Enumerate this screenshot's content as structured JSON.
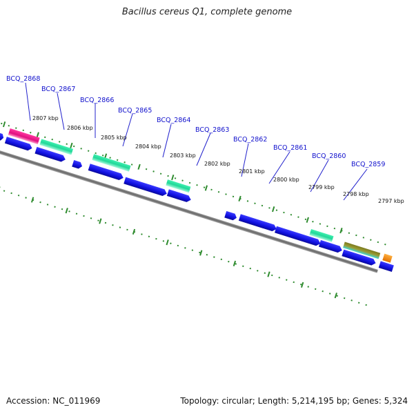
{
  "title": "Bacillus cereus Q1, complete genome",
  "footer": {
    "accession": "Accession: NC_011969",
    "summary": "Topology: circular; Length: 5,214,195 bp; Genes: 5,324"
  },
  "colors": {
    "backbone": "#777777",
    "tick": "#2e8b2e",
    "cds": "#1414e0",
    "gene_label": "#1010cc",
    "leader": "#2020cc"
  },
  "kbp_ticks": [
    "2807 kbp",
    "2806 kbp",
    "2805 kbp",
    "2804 kbp",
    "2803 kbp",
    "2802 kbp",
    "2801 kbp",
    "2800 kbp",
    "2799 kbp",
    "2798 kbp",
    "2797 kbp"
  ],
  "gene_labels": [
    "BCQ_2868",
    "BCQ_2867",
    "BCQ_2866",
    "BCQ_2865",
    "BCQ_2864",
    "BCQ_2863",
    "BCQ_2862",
    "BCQ_2861",
    "BCQ_2860",
    "BCQ_2859"
  ]
}
